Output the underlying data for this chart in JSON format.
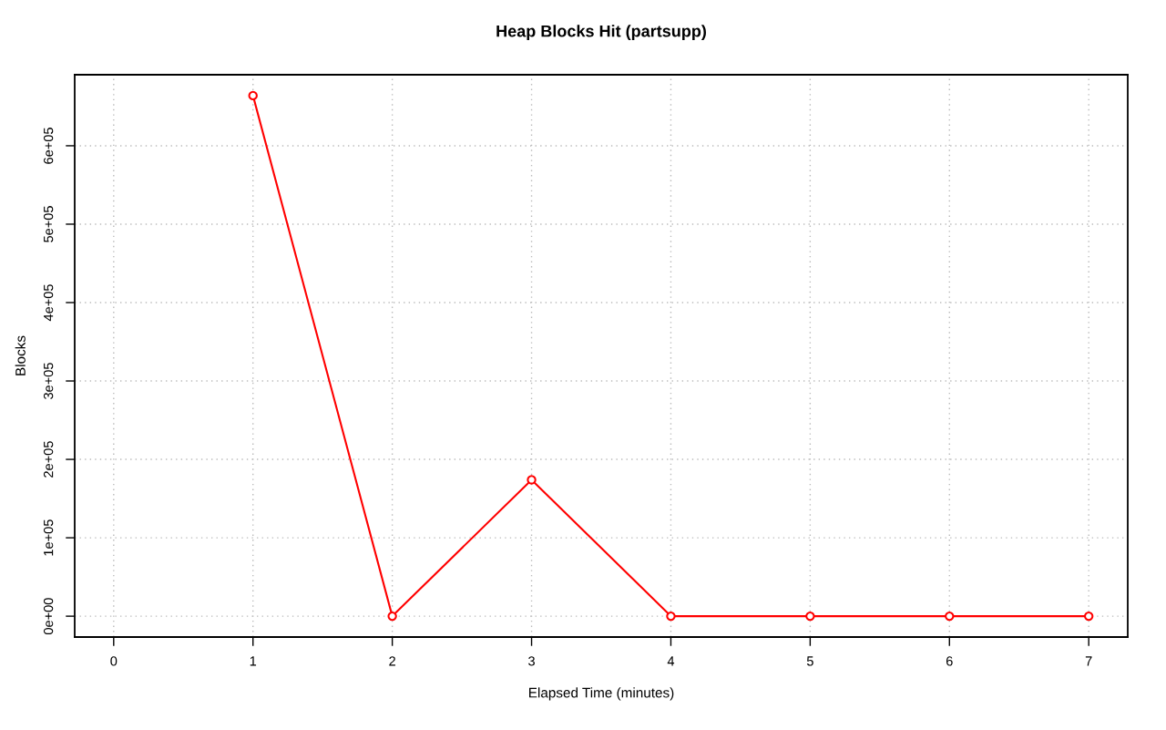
{
  "chart_data": {
    "type": "line",
    "title": "Heap Blocks Hit (partsupp)",
    "xlabel": "Elapsed Time (minutes)",
    "ylabel": "Blocks",
    "x": [
      1,
      2,
      3,
      4,
      5,
      6,
      7
    ],
    "series": [
      {
        "color": "#ff0000",
        "values": [
          664000,
          0,
          174000,
          0,
          0,
          0,
          0
        ]
      }
    ],
    "xlim": [
      -0.28,
      7.28
    ],
    "xticks": [
      0,
      1,
      2,
      3,
      4,
      5,
      6,
      7
    ],
    "ylim": [
      -26600,
      690600
    ],
    "yticks": [
      {
        "value": 0,
        "label": "0e+00"
      },
      {
        "value": 100000,
        "label": "1e+05"
      },
      {
        "value": 200000,
        "label": "2e+05"
      },
      {
        "value": 300000,
        "label": "3e+05"
      },
      {
        "value": 400000,
        "label": "4e+05"
      },
      {
        "value": 500000,
        "label": "5e+05"
      },
      {
        "value": 600000,
        "label": "6e+05"
      }
    ],
    "grid": true,
    "marker": "circle",
    "line_style": "solid"
  }
}
